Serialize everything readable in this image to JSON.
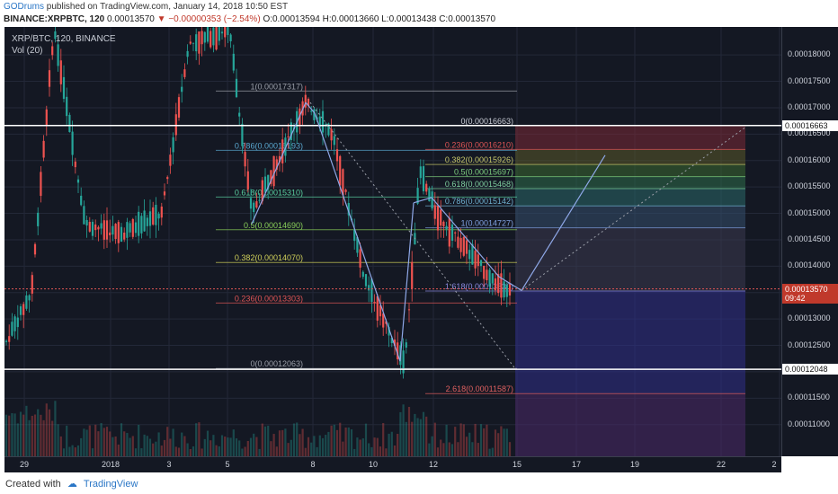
{
  "header": {
    "author": "GODrums",
    "published": "published on TradingView.com, January 14, 2018 10:50 EST",
    "symbol_line": "BINANCE:XRPBTC, 120",
    "last": "0.00013570",
    "change": "−0.00000353 (−2.54%)",
    "open": "O:0.00013594",
    "high": "H:0.00013660",
    "low": "L:0.00013438",
    "close": "C:0.00013570"
  },
  "legend": {
    "symbol": "XRP/BTC, 120, BINANCE",
    "volume": "Vol (20)"
  },
  "footer": {
    "created": "Created with",
    "brand": "TradingView"
  },
  "price_badges": {
    "upper_line": "0.00016663",
    "last_price": "0.00013570",
    "countdown": "09:42",
    "lower_line": "0.00012048"
  },
  "colors": {
    "up": "#26a69a",
    "down": "#ef5350",
    "background": "#141823"
  },
  "chart_data": {
    "type": "candlestick",
    "symbol": "XRP/BTC",
    "interval": "120",
    "exchange": "BINANCE",
    "y_range": [
      0.000104,
      0.0001853
    ],
    "y_ticks": [
      "0.00018000",
      "0.00017500",
      "0.00017000",
      "0.00016500",
      "0.00016000",
      "0.00015500",
      "0.00015000",
      "0.00014500",
      "0.00014000",
      "0.00013500",
      "0.00013000",
      "0.00012500",
      "0.00012000",
      "0.00011500",
      "0.00011000"
    ],
    "x_ticks": [
      "29",
      "2018",
      "3",
      "5",
      "8",
      "10",
      "12",
      "15",
      "17",
      "19",
      "22",
      "2"
    ],
    "horizontal_lines": [
      0.00016663,
      0.00012048
    ],
    "fib_left": [
      {
        "label": "1(0.00017317)",
        "value": 0.00017317
      },
      {
        "label": "0.786(0.00016193)",
        "value": 0.00016193
      },
      {
        "label": "0.618(0.00015310)",
        "value": 0.0001531
      },
      {
        "label": "0.5(0.00014690)",
        "value": 0.0001469
      },
      {
        "label": "0.382(0.00014070)",
        "value": 0.0001407
      },
      {
        "label": "0.236(0.00013303)",
        "value": 0.00013303
      },
      {
        "label": "0(0.00012063)",
        "value": 0.00012063
      }
    ],
    "fib_right": [
      {
        "label": "0(0.00016663)",
        "value": 0.00016663
      },
      {
        "label": "0.236(0.00016210)",
        "value": 0.0001621
      },
      {
        "label": "0.382(0.00015926)",
        "value": 0.00015926
      },
      {
        "label": "0.5(0.00015697)",
        "value": 0.00015697
      },
      {
        "label": "0.618(0.00015468)",
        "value": 0.00015468
      },
      {
        "label": "0.786(0.00015142)",
        "value": 0.00015142
      },
      {
        "label": "1(0.00014727)",
        "value": 0.00014727
      },
      {
        "label": "1.618(0.00013530)",
        "value": 0.0001353
      },
      {
        "label": "2.618(0.00011587)",
        "value": 0.00011587
      }
    ]
  }
}
